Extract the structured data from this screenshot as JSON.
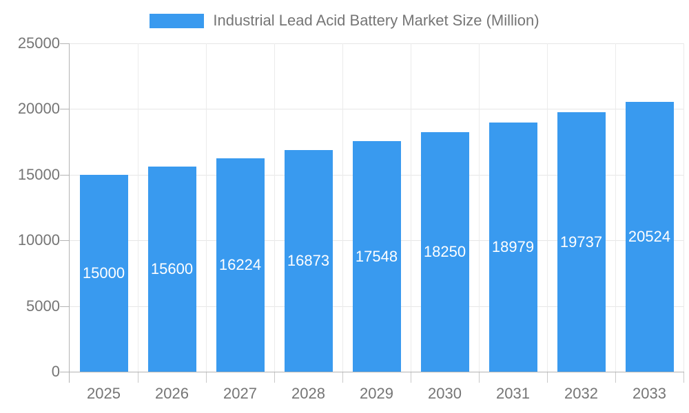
{
  "chart_data": {
    "type": "bar",
    "title": "Industrial Lead Acid Battery Market Size (Million)",
    "legend": {
      "position": "top",
      "entries": [
        "Industrial Lead Acid Battery Market Size (Million)"
      ]
    },
    "categories": [
      "2025",
      "2026",
      "2027",
      "2028",
      "2029",
      "2030",
      "2031",
      "2032",
      "2033"
    ],
    "values": [
      15000,
      15600,
      16224,
      16873,
      17548,
      18250,
      18979,
      19737,
      20524
    ],
    "bar_labels": [
      "15000",
      "15600",
      "16224",
      "16873",
      "17548",
      "18250",
      "18979",
      "19737",
      "20524"
    ],
    "xlabel": "",
    "ylabel": "",
    "ylim": [
      0,
      25000
    ],
    "yticks": [
      0,
      5000,
      10000,
      15000,
      20000,
      25000
    ],
    "ytick_labels": [
      "0",
      "5000",
      "10000",
      "15000",
      "20000",
      "25000"
    ],
    "grid": true,
    "colors": {
      "bar": "#399AEF",
      "axis": "#b3b3b3",
      "grid_h": "#e6e6e6",
      "grid_v": "#ebebeb",
      "tick": "#c9c9c9",
      "text": "#757575",
      "bar_label": "#ffffff",
      "background": "#ffffff"
    }
  }
}
